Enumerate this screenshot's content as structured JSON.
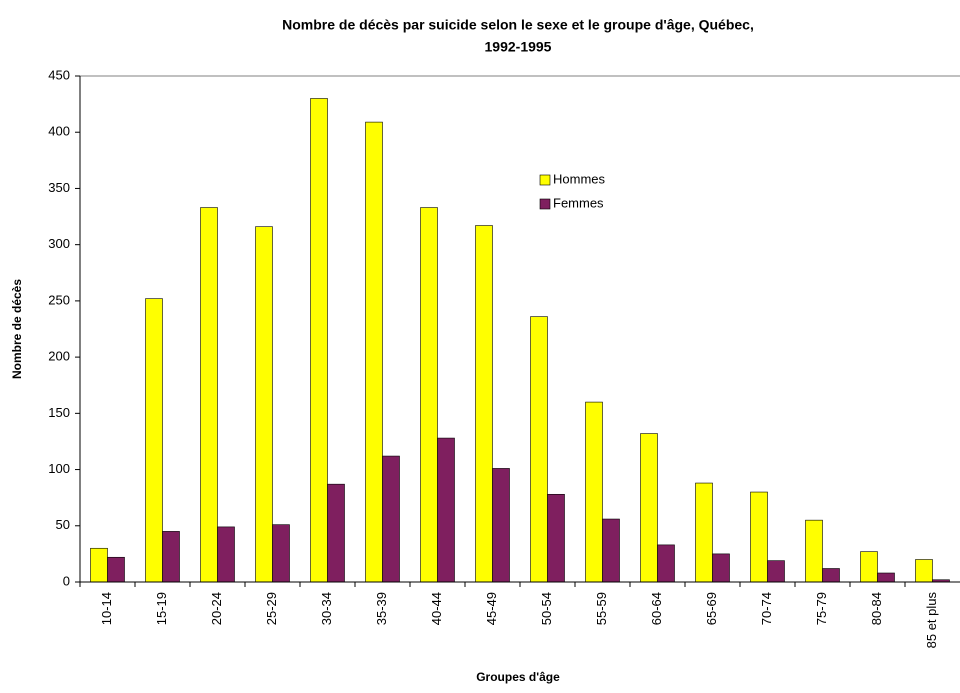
{
  "chart_data": {
    "type": "bar",
    "title": "Nombre de décès par suicide selon le sexe et le groupe d'âge, Québec,",
    "subtitle": "1992-1995",
    "x_label": "Groupes d'âge",
    "y_label": "Nombre de décès",
    "categories": [
      "10-14",
      "15-19",
      "20-24",
      "25-29",
      "30-34",
      "35-39",
      "40-44",
      "45-49",
      "50-54",
      "55-59",
      "60-64",
      "65-69",
      "70-74",
      "75-79",
      "80-84",
      "85 et plus"
    ],
    "series": [
      {
        "name": "Hommes",
        "color": "#ffff00",
        "values": [
          30,
          252,
          333,
          316,
          430,
          409,
          333,
          317,
          236,
          160,
          132,
          88,
          80,
          55,
          27,
          20
        ]
      },
      {
        "name": "Femmes",
        "color": "#7f1f5f",
        "values": [
          22,
          45,
          49,
          51,
          87,
          112,
          128,
          101,
          78,
          56,
          33,
          25,
          19,
          12,
          8,
          2
        ]
      }
    ],
    "ylim": [
      0,
      450
    ],
    "yticks": [
      0,
      50,
      100,
      150,
      200,
      250,
      300,
      350,
      400,
      450
    ],
    "grid": false,
    "legend": "upper center"
  }
}
